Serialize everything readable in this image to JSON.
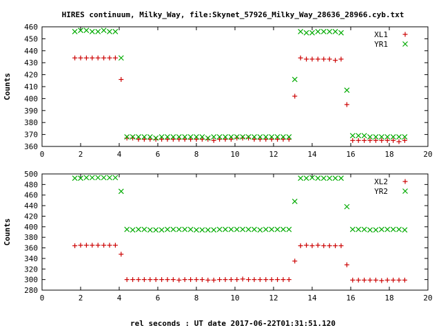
{
  "title": "HIRES continuum, Milky_Way, file:Skynet_57926_Milky_Way_28636_28966.cyb.txt",
  "xlabel": "rel seconds : UT date 2017-06-22T01:31:51.120",
  "colors": {
    "red": "#cc0000",
    "green": "#00aa00",
    "axis": "#000000"
  },
  "chart_data": [
    {
      "type": "scatter",
      "ylabel": "Counts",
      "xlim": [
        0,
        20
      ],
      "ylim": [
        360,
        460
      ],
      "xticks": [
        0,
        2,
        4,
        6,
        8,
        10,
        12,
        14,
        16,
        18,
        20
      ],
      "yticks": [
        360,
        370,
        380,
        390,
        400,
        410,
        420,
        430,
        440,
        450,
        460
      ],
      "legend": "top-right",
      "series": [
        {
          "name": "XL1",
          "marker": "plus",
          "color": "#cc0000",
          "points": [
            [
              1.7,
              434
            ],
            [
              2.0,
              434
            ],
            [
              2.3,
              434
            ],
            [
              2.6,
              434
            ],
            [
              2.9,
              434
            ],
            [
              3.2,
              434
            ],
            [
              3.5,
              434
            ],
            [
              3.8,
              434
            ],
            [
              4.1,
              416
            ],
            [
              4.4,
              367
            ],
            [
              4.7,
              367
            ],
            [
              5.0,
              366
            ],
            [
              5.3,
              366
            ],
            [
              5.6,
              366
            ],
            [
              5.9,
              366
            ],
            [
              6.2,
              366
            ],
            [
              6.5,
              366
            ],
            [
              6.8,
              366
            ],
            [
              7.1,
              366
            ],
            [
              7.4,
              366
            ],
            [
              7.7,
              366
            ],
            [
              8.0,
              366
            ],
            [
              8.3,
              366
            ],
            [
              8.6,
              366
            ],
            [
              8.9,
              365
            ],
            [
              9.2,
              366
            ],
            [
              9.5,
              366
            ],
            [
              9.8,
              366
            ],
            [
              10.1,
              367
            ],
            [
              10.4,
              367
            ],
            [
              10.7,
              367
            ],
            [
              11.0,
              366
            ],
            [
              11.3,
              366
            ],
            [
              11.6,
              366
            ],
            [
              11.9,
              366
            ],
            [
              12.2,
              366
            ],
            [
              12.5,
              366
            ],
            [
              12.8,
              366
            ],
            [
              13.1,
              402
            ],
            [
              13.4,
              434
            ],
            [
              13.7,
              433
            ],
            [
              14.0,
              433
            ],
            [
              14.3,
              433
            ],
            [
              14.6,
              433
            ],
            [
              14.9,
              433
            ],
            [
              15.2,
              432
            ],
            [
              15.5,
              433
            ],
            [
              15.8,
              395
            ],
            [
              16.1,
              365
            ],
            [
              16.4,
              365
            ],
            [
              16.7,
              365
            ],
            [
              17.0,
              365
            ],
            [
              17.3,
              365
            ],
            [
              17.6,
              365
            ],
            [
              17.9,
              365
            ],
            [
              18.2,
              365
            ],
            [
              18.5,
              364
            ],
            [
              18.8,
              365
            ]
          ]
        },
        {
          "name": "YR1",
          "marker": "cross",
          "color": "#00aa00",
          "points": [
            [
              1.7,
              456
            ],
            [
              2.0,
              457
            ],
            [
              2.3,
              457
            ],
            [
              2.6,
              456
            ],
            [
              2.9,
              456
            ],
            [
              3.2,
              457
            ],
            [
              3.5,
              456
            ],
            [
              3.8,
              456
            ],
            [
              4.1,
              434
            ],
            [
              4.4,
              368
            ],
            [
              4.7,
              368
            ],
            [
              5.0,
              368
            ],
            [
              5.3,
              368
            ],
            [
              5.6,
              368
            ],
            [
              5.9,
              367
            ],
            [
              6.2,
              368
            ],
            [
              6.5,
              368
            ],
            [
              6.8,
              368
            ],
            [
              7.1,
              368
            ],
            [
              7.4,
              368
            ],
            [
              7.7,
              368
            ],
            [
              8.0,
              368
            ],
            [
              8.3,
              368
            ],
            [
              8.6,
              367
            ],
            [
              8.9,
              368
            ],
            [
              9.2,
              368
            ],
            [
              9.5,
              368
            ],
            [
              9.8,
              368
            ],
            [
              10.1,
              368
            ],
            [
              10.4,
              368
            ],
            [
              10.7,
              368
            ],
            [
              11.0,
              368
            ],
            [
              11.3,
              368
            ],
            [
              11.6,
              368
            ],
            [
              11.9,
              368
            ],
            [
              12.2,
              368
            ],
            [
              12.5,
              368
            ],
            [
              12.8,
              368
            ],
            [
              13.1,
              416
            ],
            [
              13.4,
              456
            ],
            [
              13.7,
              455
            ],
            [
              14.0,
              455
            ],
            [
              14.3,
              456
            ],
            [
              14.6,
              456
            ],
            [
              14.9,
              456
            ],
            [
              15.2,
              456
            ],
            [
              15.5,
              455
            ],
            [
              15.8,
              407
            ],
            [
              16.1,
              369
            ],
            [
              16.4,
              369
            ],
            [
              16.7,
              369
            ],
            [
              17.0,
              368
            ],
            [
              17.3,
              368
            ],
            [
              17.6,
              368
            ],
            [
              17.9,
              368
            ],
            [
              18.2,
              368
            ],
            [
              18.5,
              368
            ],
            [
              18.8,
              368
            ]
          ]
        }
      ]
    },
    {
      "type": "scatter",
      "ylabel": "Counts",
      "xlim": [
        0,
        20
      ],
      "ylim": [
        280,
        500
      ],
      "xticks": [
        0,
        2,
        4,
        6,
        8,
        10,
        12,
        14,
        16,
        18,
        20
      ],
      "yticks": [
        280,
        300,
        320,
        340,
        360,
        380,
        400,
        420,
        440,
        460,
        480,
        500
      ],
      "legend": "top-right",
      "series": [
        {
          "name": "XL2",
          "marker": "plus",
          "color": "#cc0000",
          "points": [
            [
              1.7,
              364
            ],
            [
              2.0,
              365
            ],
            [
              2.3,
              365
            ],
            [
              2.6,
              365
            ],
            [
              2.9,
              365
            ],
            [
              3.2,
              365
            ],
            [
              3.5,
              365
            ],
            [
              3.8,
              365
            ],
            [
              4.1,
              348
            ],
            [
              4.4,
              300
            ],
            [
              4.7,
              300
            ],
            [
              5.0,
              300
            ],
            [
              5.3,
              300
            ],
            [
              5.6,
              300
            ],
            [
              5.9,
              300
            ],
            [
              6.2,
              300
            ],
            [
              6.5,
              300
            ],
            [
              6.8,
              300
            ],
            [
              7.1,
              299
            ],
            [
              7.4,
              300
            ],
            [
              7.7,
              300
            ],
            [
              8.0,
              300
            ],
            [
              8.3,
              300
            ],
            [
              8.6,
              299
            ],
            [
              8.9,
              299
            ],
            [
              9.2,
              300
            ],
            [
              9.5,
              300
            ],
            [
              9.8,
              300
            ],
            [
              10.1,
              300
            ],
            [
              10.4,
              301
            ],
            [
              10.7,
              300
            ],
            [
              11.0,
              300
            ],
            [
              11.3,
              300
            ],
            [
              11.6,
              300
            ],
            [
              11.9,
              300
            ],
            [
              12.2,
              300
            ],
            [
              12.5,
              300
            ],
            [
              12.8,
              300
            ],
            [
              13.1,
              335
            ],
            [
              13.4,
              364
            ],
            [
              13.7,
              365
            ],
            [
              14.0,
              364
            ],
            [
              14.3,
              365
            ],
            [
              14.6,
              364
            ],
            [
              14.9,
              364
            ],
            [
              15.2,
              364
            ],
            [
              15.5,
              364
            ],
            [
              15.8,
              328
            ],
            [
              16.1,
              299
            ],
            [
              16.4,
              299
            ],
            [
              16.7,
              299
            ],
            [
              17.0,
              299
            ],
            [
              17.3,
              299
            ],
            [
              17.6,
              298
            ],
            [
              17.9,
              299
            ],
            [
              18.2,
              299
            ],
            [
              18.5,
              299
            ],
            [
              18.8,
              299
            ]
          ]
        },
        {
          "name": "YR2",
          "marker": "cross",
          "color": "#00aa00",
          "points": [
            [
              1.7,
              492
            ],
            [
              2.0,
              492
            ],
            [
              2.3,
              493
            ],
            [
              2.6,
              493
            ],
            [
              2.9,
              493
            ],
            [
              3.2,
              493
            ],
            [
              3.5,
              493
            ],
            [
              3.8,
              493
            ],
            [
              4.1,
              467
            ],
            [
              4.4,
              395
            ],
            [
              4.7,
              394
            ],
            [
              5.0,
              395
            ],
            [
              5.3,
              395
            ],
            [
              5.6,
              394
            ],
            [
              5.9,
              394
            ],
            [
              6.2,
              394
            ],
            [
              6.5,
              395
            ],
            [
              6.8,
              395
            ],
            [
              7.1,
              395
            ],
            [
              7.4,
              395
            ],
            [
              7.7,
              395
            ],
            [
              8.0,
              394
            ],
            [
              8.3,
              394
            ],
            [
              8.6,
              394
            ],
            [
              8.9,
              394
            ],
            [
              9.2,
              395
            ],
            [
              9.5,
              395
            ],
            [
              9.8,
              395
            ],
            [
              10.1,
              395
            ],
            [
              10.4,
              395
            ],
            [
              10.7,
              395
            ],
            [
              11.0,
              395
            ],
            [
              11.3,
              394
            ],
            [
              11.6,
              395
            ],
            [
              11.9,
              395
            ],
            [
              12.2,
              395
            ],
            [
              12.5,
              395
            ],
            [
              12.8,
              395
            ],
            [
              13.1,
              448
            ],
            [
              13.4,
              492
            ],
            [
              13.7,
              492
            ],
            [
              14.0,
              493
            ],
            [
              14.3,
              492
            ],
            [
              14.6,
              492
            ],
            [
              14.9,
              492
            ],
            [
              15.2,
              492
            ],
            [
              15.5,
              492
            ],
            [
              15.8,
              438
            ],
            [
              16.1,
              395
            ],
            [
              16.4,
              395
            ],
            [
              16.7,
              395
            ],
            [
              17.0,
              394
            ],
            [
              17.3,
              394
            ],
            [
              17.6,
              395
            ],
            [
              17.9,
              395
            ],
            [
              18.2,
              395
            ],
            [
              18.5,
              395
            ],
            [
              18.8,
              394
            ]
          ]
        }
      ]
    }
  ]
}
